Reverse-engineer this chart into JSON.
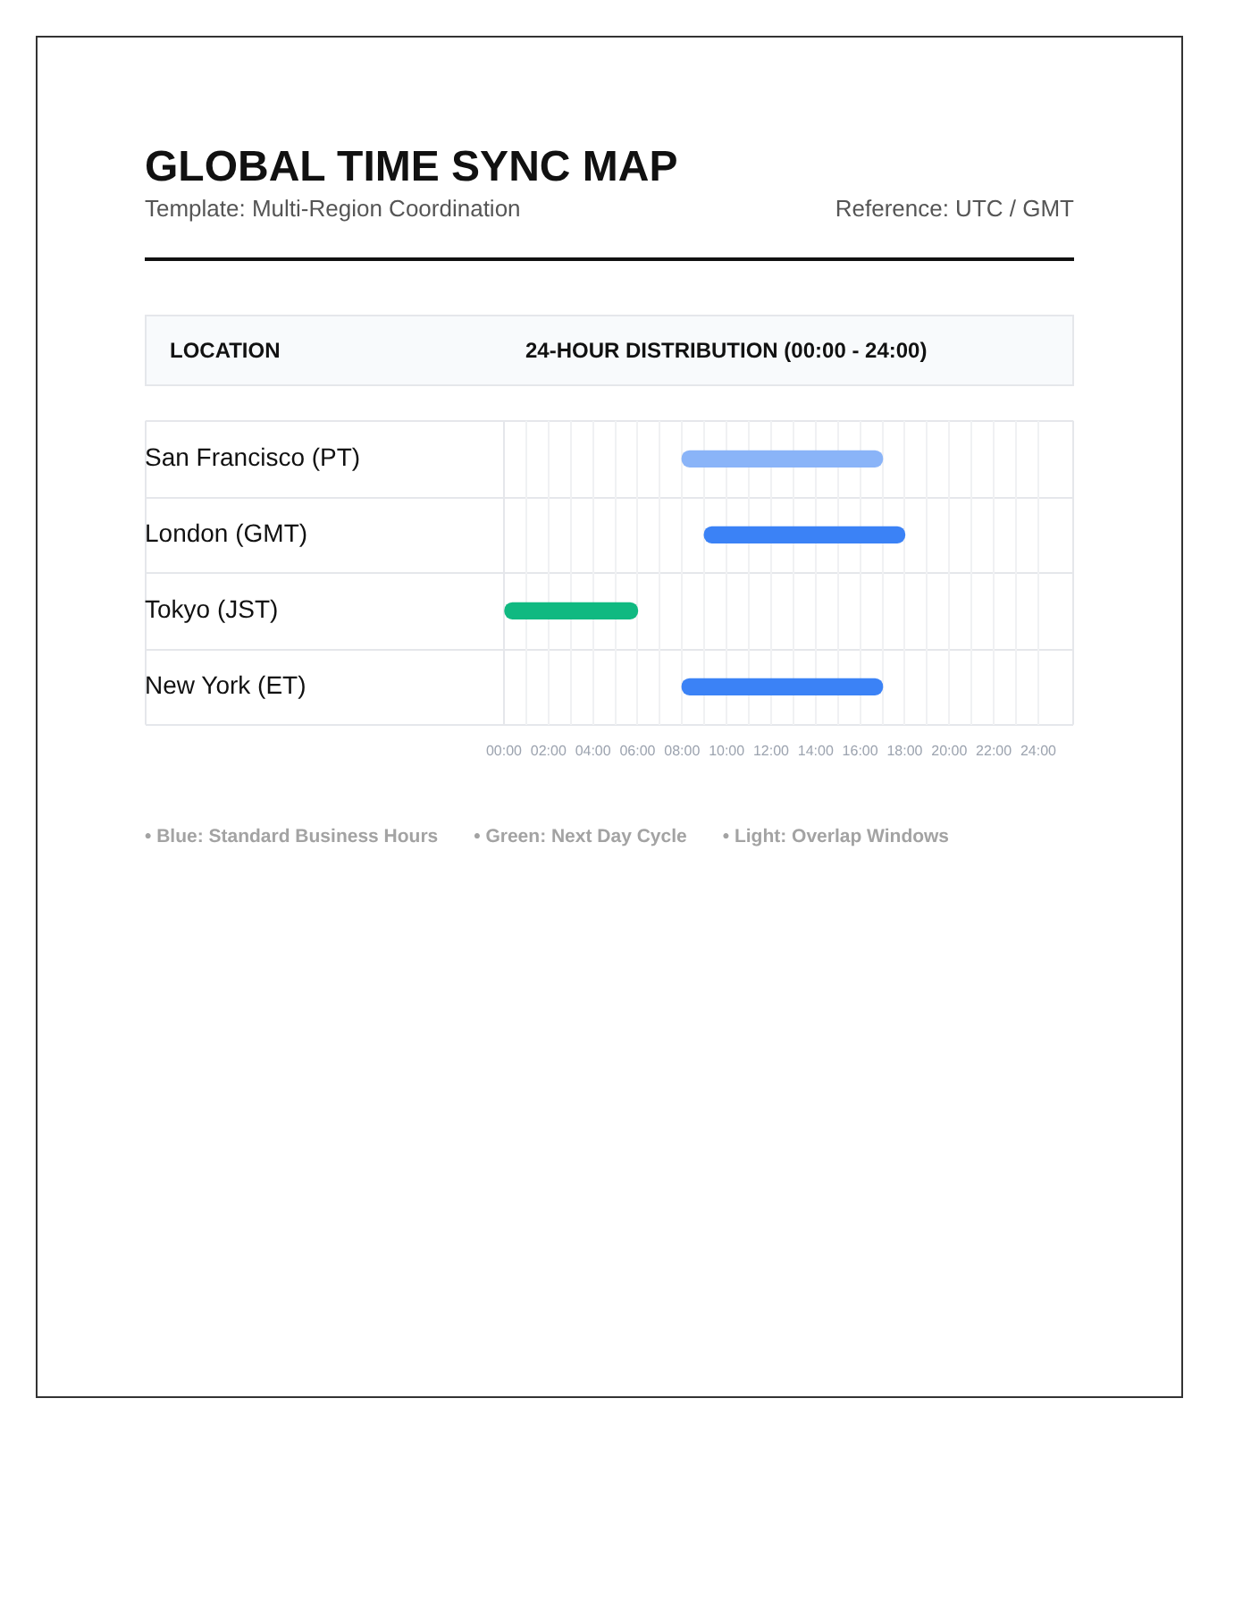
{
  "chart_data": {
    "type": "bar",
    "orientation": "horizontal",
    "title": "GLOBAL TIME SYNC MAP",
    "subtitle": "Template: Multi-Region Coordination",
    "ylabel": "LOCATION",
    "xlabel": "24-HOUR DISTRIBUTION (00:00 - 24:00)",
    "categories": [
      "San Francisco (PT)",
      "London (GMT)",
      "Tokyo (JST)",
      "New York (ET)"
    ],
    "base": [
      8,
      9,
      0,
      8
    ],
    "values": [
      9,
      9,
      6,
      9
    ],
    "colors": [
      "#8ab4f8",
      "#3b82f6",
      "#10b981",
      "#3b82f6"
    ],
    "xlim": [
      0,
      24
    ],
    "xticks": [
      {
        "value": 0,
        "label": "00:00"
      },
      {
        "value": 1,
        "label": null
      },
      {
        "value": 2,
        "label": "02:00"
      },
      {
        "value": 3,
        "label": null
      },
      {
        "value": 4,
        "label": "04:00"
      },
      {
        "value": 5,
        "label": null
      },
      {
        "value": 6,
        "label": "06:00"
      },
      {
        "value": 7,
        "label": null
      },
      {
        "value": 8,
        "label": "08:00"
      },
      {
        "value": 9,
        "label": null
      },
      {
        "value": 10,
        "label": "10:00"
      },
      {
        "value": 11,
        "label": null
      },
      {
        "value": 12,
        "label": "12:00"
      },
      {
        "value": 13,
        "label": null
      },
      {
        "value": 14,
        "label": "14:00"
      },
      {
        "value": 15,
        "label": null
      },
      {
        "value": 16,
        "label": "16:00"
      },
      {
        "value": 17,
        "label": null
      },
      {
        "value": 18,
        "label": "18:00"
      },
      {
        "value": 19,
        "label": null
      },
      {
        "value": 20,
        "label": "20:00"
      },
      {
        "value": 21,
        "label": null
      },
      {
        "value": 22,
        "label": "22:00"
      },
      {
        "value": 23,
        "label": null
      },
      {
        "value": 24,
        "label": "24:00"
      }
    ],
    "grid": true,
    "annotations": [
      "Reference: UTC / GMT",
      "• Blue: Standard Business Hours",
      "• Green: Next Day Cycle",
      "• Light: Overlap Windows"
    ]
  }
}
